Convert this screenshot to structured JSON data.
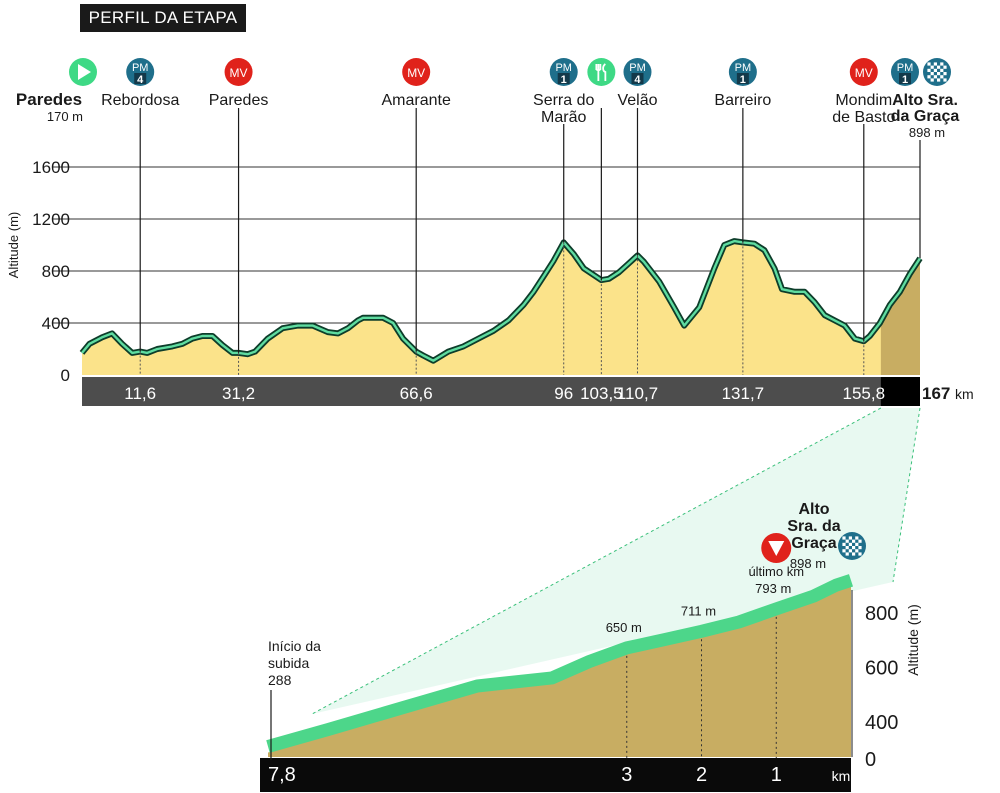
{
  "header": {
    "title": "PERFIL DA ETAPA"
  },
  "colors": {
    "fill_main": "#fbe38a",
    "fill_climb": "#c8ad62",
    "line_main": "#1f8a58",
    "line_glow": "#5fdca0",
    "climb_band": "#4dd68a",
    "axis_bar": "#4d4d4d",
    "axis_bar_end": "#000000",
    "sprint_mv": "#e0221b",
    "mountain_pm": "#1f6f8b",
    "start_green": "#3ed985",
    "feed_green": "#3ed985"
  },
  "icons": {
    "start": "play-triangle-icon",
    "mv": "mv-circle-icon",
    "pm": "mountain-category-icon",
    "feed": "fork-knife-icon",
    "finish": "checkered-flag-icon",
    "last_km": "down-triangle-icon"
  },
  "start_label": {
    "name": "Paredes",
    "altitude": "170 m"
  },
  "finish_label": {
    "name_line1": "Alto Sra.",
    "name_line2": "da Graça",
    "altitude": "898 m"
  },
  "total_km_label": "167",
  "km_unit": "km",
  "points": [
    {
      "km": 11.6,
      "tick": "11,6",
      "label": [
        "Rebordosa"
      ],
      "icon": "pm",
      "icon_text": "PM",
      "icon_cat": "4"
    },
    {
      "km": 31.2,
      "tick": "31,2",
      "label": [
        "Paredes"
      ],
      "icon": "mv",
      "icon_text": "MV"
    },
    {
      "km": 66.6,
      "tick": "66,6",
      "label": [
        "Amarante"
      ],
      "icon": "mv",
      "icon_text": "MV"
    },
    {
      "km": 96,
      "tick": "96",
      "label": [
        "Serra do",
        "Marão"
      ],
      "icon": "pm",
      "icon_text": "PM",
      "icon_cat": "1"
    },
    {
      "km": 103.5,
      "tick": "103,5",
      "label": [],
      "icon": "feed"
    },
    {
      "km": 110.7,
      "tick": "110,7",
      "label": [
        "Velão"
      ],
      "icon": "pm",
      "icon_text": "PM",
      "icon_cat": "4"
    },
    {
      "km": 131.7,
      "tick": "131,7",
      "label": [
        "Barreiro"
      ],
      "icon": "pm",
      "icon_text": "PM",
      "icon_cat": "1"
    },
    {
      "km": 155.8,
      "tick": "155,8",
      "label": [
        "Mondim",
        "de Basto"
      ],
      "icon": "mv",
      "icon_text": "MV"
    }
  ],
  "finish_icons": {
    "pm_text": "PM",
    "pm_cat": "1"
  },
  "chart_data": [
    {
      "type": "area",
      "ylabel": "Altitude (m)",
      "yticks": [
        0,
        400,
        800,
        1200,
        1600
      ],
      "ylim": [
        0,
        1800
      ],
      "xlim": [
        0,
        167
      ],
      "x_unit": "km",
      "grid": true,
      "x": [
        0,
        1.5,
        4,
        6,
        8,
        10,
        11.6,
        13,
        15,
        18,
        20,
        22,
        24,
        26,
        28,
        30,
        31.2,
        33,
        34.5,
        37,
        40,
        43,
        46,
        49,
        51,
        53,
        55,
        56,
        58,
        60,
        62,
        64,
        66.6,
        68,
        70,
        73,
        76,
        79,
        82,
        85,
        88,
        90,
        92,
        94,
        96,
        98,
        100,
        103.5,
        105,
        107,
        109,
        110.7,
        112,
        115,
        118,
        120,
        123,
        126,
        128,
        130,
        131.7,
        134,
        136,
        138,
        139.5,
        142,
        144,
        146,
        148,
        150,
        152,
        154,
        155.8,
        157,
        159,
        161,
        163,
        165,
        167
      ],
      "y": [
        170,
        240,
        290,
        320,
        240,
        170,
        180,
        170,
        200,
        220,
        240,
        280,
        300,
        300,
        230,
        170,
        170,
        160,
        180,
        280,
        360,
        380,
        380,
        330,
        320,
        360,
        420,
        440,
        440,
        440,
        400,
        280,
        180,
        150,
        110,
        180,
        220,
        280,
        340,
        420,
        540,
        640,
        760,
        880,
        1020,
        930,
        820,
        730,
        740,
        790,
        860,
        920,
        870,
        720,
        520,
        380,
        520,
        820,
        1000,
        1030,
        1020,
        1010,
        960,
        820,
        660,
        640,
        640,
        560,
        460,
        420,
        380,
        280,
        260,
        300,
        400,
        540,
        640,
        780,
        898
      ]
    },
    {
      "type": "area",
      "ylabel": "Altitude (m)",
      "yticks": [
        0,
        400,
        600,
        800
      ],
      "ylim": [
        0,
        960
      ],
      "xlim": [
        7.8,
        0
      ],
      "x_unit": "km",
      "grid": false,
      "x": [
        7.8,
        7,
        6,
        5,
        4,
        3.5,
        3,
        2.5,
        2,
        1.5,
        1,
        0.5,
        0.2,
        0
      ],
      "y": [
        288,
        350,
        430,
        510,
        540,
        600,
        650,
        680,
        711,
        745,
        793,
        840,
        880,
        898
      ],
      "xticks": [
        7.8,
        3,
        2,
        1
      ],
      "xtick_labels": [
        "7,8",
        "3",
        "2",
        "1"
      ],
      "start_annotation": [
        "Início da",
        "subida",
        "288"
      ],
      "annotations": [
        {
          "x": 3,
          "text": "650 m"
        },
        {
          "x": 2,
          "text": "711 m"
        },
        {
          "x": 1,
          "text": "793 m"
        }
      ],
      "last_km_label": "último km",
      "finish_label": [
        "Alto",
        "Sra. da",
        "Graça"
      ],
      "finish_altitude": "898 m",
      "x_axis_unit": "km"
    }
  ]
}
